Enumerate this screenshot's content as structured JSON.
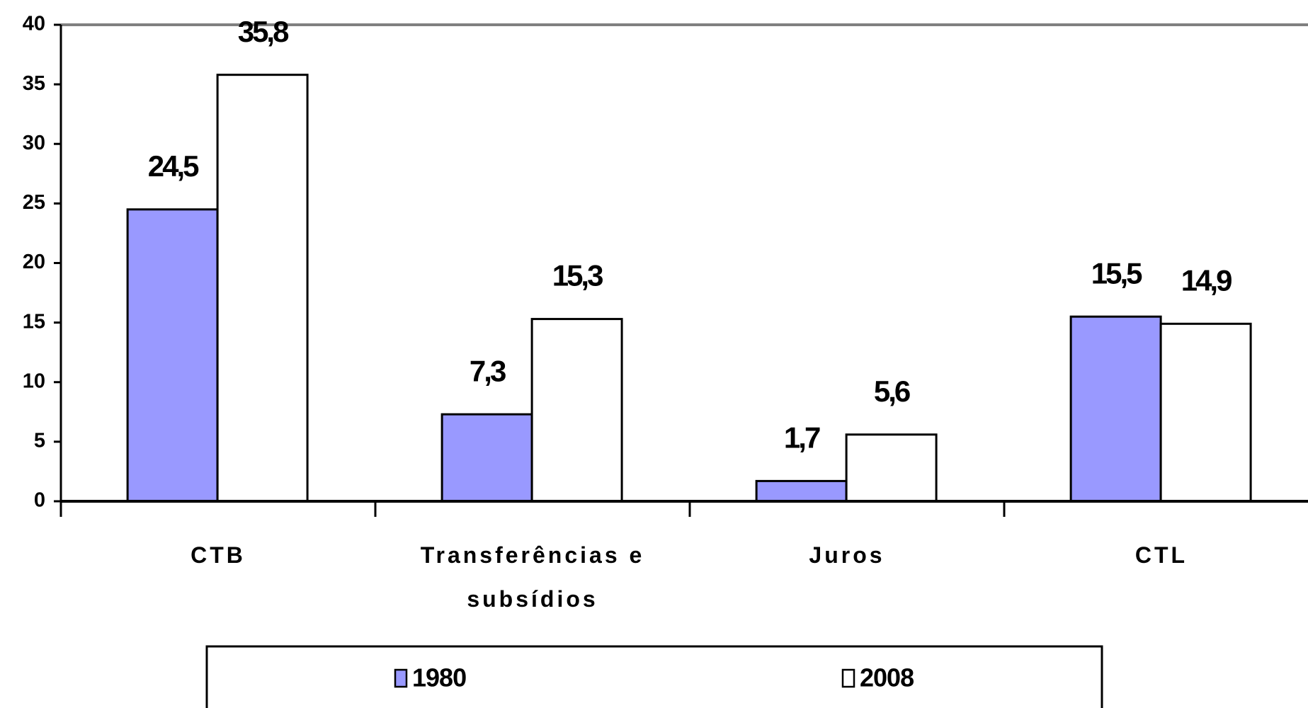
{
  "chart_data": {
    "type": "bar",
    "categories": [
      "CTB",
      "Transferências e subsídios",
      "Juros",
      "CTL"
    ],
    "series": [
      {
        "name": "1980",
        "color": "#9999ff",
        "values": [
          24.5,
          7.3,
          1.7,
          15.5
        ],
        "value_labels": [
          "24,5",
          "7,3",
          "1,7",
          "15,5"
        ]
      },
      {
        "name": "2008",
        "color": "#ffffff",
        "values": [
          35.8,
          15.3,
          5.6,
          14.9
        ],
        "value_labels": [
          "35,8",
          "15,3",
          "5,6",
          "14,9"
        ]
      }
    ],
    "ylim": [
      0,
      40
    ],
    "yticks": [
      0,
      5,
      10,
      15,
      20,
      25,
      30,
      35,
      40
    ],
    "grid": false,
    "legend": "bottom"
  }
}
